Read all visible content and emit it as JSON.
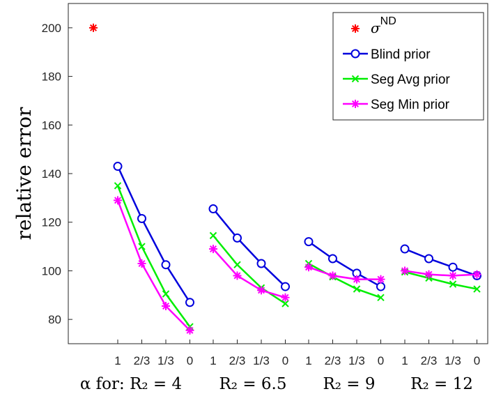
{
  "chart_data": {
    "type": "line",
    "ylabel": "relative error",
    "ylim": [
      70,
      210
    ],
    "yticks": [
      80,
      100,
      120,
      140,
      160,
      180,
      200
    ],
    "x_tick_labels": [
      "1",
      "2/3",
      "1/3",
      "0",
      "1",
      "2/3",
      "1/3",
      "0",
      "1",
      "2/3",
      "1/3",
      "0",
      "1",
      "2/3",
      "1/3",
      "0"
    ],
    "group_labels": [
      "α for: R₂ = 4",
      "R₂ = 6.5",
      "R₂ = 9",
      "R₂ = 12"
    ],
    "reference_point": {
      "name": "σ^ND",
      "legend_label": "σ",
      "legend_superscript": "ND",
      "value": 200,
      "color": "#ff0000"
    },
    "series": [
      {
        "name": "Blind prior",
        "color": "#0000dd",
        "marker": "circle",
        "groups": [
          [
            143,
            121.5,
            102.5,
            87
          ],
          [
            125.5,
            113.5,
            103,
            93.5
          ],
          [
            112,
            105,
            99,
            93.5
          ],
          [
            109,
            105,
            101.5,
            98
          ]
        ]
      },
      {
        "name": "Seg Avg prior",
        "color": "#00ee00",
        "marker": "x",
        "groups": [
          [
            135,
            110,
            90.5,
            77
          ],
          [
            114.5,
            102.5,
            93,
            86.5
          ],
          [
            103,
            97.5,
            92.5,
            89
          ],
          [
            99.5,
            97,
            94.5,
            92.5
          ]
        ]
      },
      {
        "name": "Seg Min prior",
        "color": "#ff00ff",
        "marker": "asterisk",
        "groups": [
          [
            129,
            103,
            85.5,
            75.5
          ],
          [
            109,
            98,
            92,
            89
          ],
          [
            101.5,
            98,
            96.5,
            96.5
          ],
          [
            100,
            98.5,
            98,
            98.5
          ]
        ]
      }
    ],
    "legend_position": "top-right",
    "grid": false
  }
}
